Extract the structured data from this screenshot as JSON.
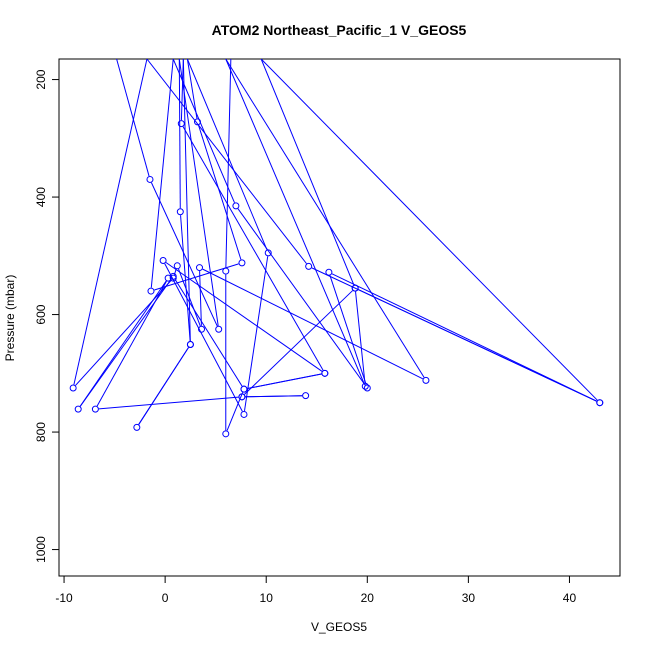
{
  "chart_data": {
    "type": "line",
    "title": "ATOM2 Northeast_Pacific_1 V_GEOS5",
    "xlabel": "V_GEOS5",
    "ylabel": "Pressure (mbar)",
    "xlim": [
      -10.5,
      45
    ],
    "ylim": [
      1045,
      165
    ],
    "y_reversed": true,
    "x_ticks": [
      -10,
      0,
      10,
      20,
      30,
      40
    ],
    "y_ticks": [
      200,
      400,
      600,
      800,
      1000
    ],
    "grid": false,
    "legend": "none",
    "color": "#0000ff",
    "series": [
      {
        "name": "",
        "points": [
          {
            "x": -4.8,
            "y": 165
          },
          {
            "x": -1.5,
            "y": 370
          },
          {
            "x": 5.3,
            "y": 625
          },
          {
            "x": 1.4,
            "y": 165
          },
          {
            "x": 1.5,
            "y": 425
          },
          {
            "x": 2.5,
            "y": 651
          },
          {
            "x": -2.8,
            "y": 792
          },
          {
            "x": 2.5,
            "y": 651
          },
          {
            "x": 1.8,
            "y": 165
          },
          {
            "x": 1.6,
            "y": 275
          },
          {
            "x": 15.8,
            "y": 700
          },
          {
            "x": -0.2,
            "y": 508
          },
          {
            "x": 7.8,
            "y": 770
          },
          {
            "x": 10.2,
            "y": 495
          },
          {
            "x": 2.2,
            "y": 165
          },
          {
            "x": 3.2,
            "y": 272
          },
          {
            "x": 7.6,
            "y": 512
          },
          {
            "x": -1.4,
            "y": 560
          },
          {
            "x": 0.8,
            "y": 165
          },
          {
            "x": 7.0,
            "y": 415
          },
          {
            "x": 20.0,
            "y": 725
          },
          {
            "x": 16.2,
            "y": 528
          },
          {
            "x": 43.0,
            "y": 750
          },
          {
            "x": 14.2,
            "y": 518
          },
          {
            "x": -1.8,
            "y": 165
          },
          {
            "x": -9.1,
            "y": 725
          },
          {
            "x": 0.8,
            "y": 538
          },
          {
            "x": 1.2,
            "y": 517
          },
          {
            "x": 3.6,
            "y": 625
          },
          {
            "x": 3.4,
            "y": 520
          },
          {
            "x": 25.8,
            "y": 712
          },
          {
            "x": 6.0,
            "y": 165
          },
          {
            "x": 19.8,
            "y": 722
          },
          {
            "x": 18.8,
            "y": 555
          },
          {
            "x": 43.0,
            "y": 750
          },
          {
            "x": 9.5,
            "y": 165
          },
          {
            "x": 18.8,
            "y": 555
          },
          {
            "x": 7.6,
            "y": 740
          },
          {
            "x": 13.9,
            "y": 738
          },
          {
            "x": 7.6,
            "y": 740
          },
          {
            "x": -6.9,
            "y": 761
          },
          {
            "x": 0.3,
            "y": 538
          },
          {
            "x": -8.6,
            "y": 761
          },
          {
            "x": 0.8,
            "y": 535
          },
          {
            "x": 7.8,
            "y": 727
          },
          {
            "x": 15.8,
            "y": 700
          },
          {
            "x": 7.8,
            "y": 727
          },
          {
            "x": 6.0,
            "y": 803
          },
          {
            "x": 6.0,
            "y": 526
          },
          {
            "x": 6.5,
            "y": 165
          }
        ]
      }
    ]
  }
}
